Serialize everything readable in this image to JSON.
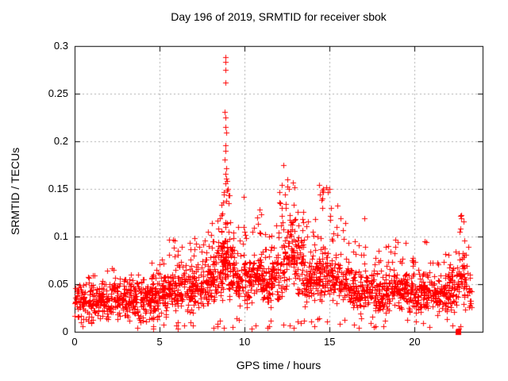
{
  "chart_data": {
    "type": "scatter",
    "title": "Day 196 of 2019, SRMTID for receiver sbok",
    "xlabel": "GPS time / hours",
    "ylabel": "SRMTID / TECUs",
    "xlim": [
      0,
      24
    ],
    "ylim": [
      0,
      0.3
    ],
    "xticks": [
      0,
      5,
      10,
      15,
      20
    ],
    "xtick_labels": [
      "0",
      "5",
      "10",
      "15",
      "20"
    ],
    "yticks": [
      0,
      0.05,
      0.1,
      0.15,
      0.2,
      0.25,
      0.3
    ],
    "ytick_labels": [
      "0",
      "0.05",
      "0.1",
      "0.15",
      "0.2",
      "0.25",
      "0.3"
    ],
    "grid": true,
    "legend": "none",
    "marker": "plus",
    "marker_color": "#ff0000",
    "grid_color": "#b0b0b0",
    "axis_color": "#000000",
    "background": "#ffffff",
    "density_envelope": {
      "description": "Dense scatter of ~2300 red plus markers; per-bin [hourStart, hourEnd, minY, typicalY, maxY, count] estimated from the plot",
      "bins": [
        [
          0.0,
          0.5,
          0.012,
          0.032,
          0.062,
          40
        ],
        [
          0.5,
          1.0,
          0.006,
          0.028,
          0.058,
          42
        ],
        [
          1.0,
          1.5,
          0.005,
          0.03,
          0.072,
          45
        ],
        [
          1.5,
          2.0,
          0.008,
          0.033,
          0.078,
          45
        ],
        [
          2.0,
          2.5,
          0.01,
          0.036,
          0.072,
          45
        ],
        [
          2.5,
          3.0,
          0.01,
          0.034,
          0.065,
          45
        ],
        [
          3.0,
          3.5,
          0.01,
          0.033,
          0.062,
          45
        ],
        [
          3.5,
          4.0,
          0.008,
          0.032,
          0.06,
          45
        ],
        [
          4.0,
          4.5,
          0.006,
          0.03,
          0.058,
          48
        ],
        [
          4.5,
          5.0,
          0.008,
          0.034,
          0.078,
          55
        ],
        [
          5.0,
          5.5,
          0.012,
          0.038,
          0.085,
          48
        ],
        [
          5.5,
          6.0,
          0.018,
          0.045,
          0.1,
          50
        ],
        [
          6.0,
          6.5,
          0.02,
          0.048,
          0.105,
          50
        ],
        [
          6.5,
          7.0,
          0.018,
          0.045,
          0.095,
          50
        ],
        [
          7.0,
          7.5,
          0.018,
          0.046,
          0.1,
          50
        ],
        [
          7.5,
          8.0,
          0.02,
          0.05,
          0.11,
          50
        ],
        [
          8.0,
          8.4,
          0.025,
          0.055,
          0.13,
          45
        ],
        [
          8.4,
          8.75,
          0.03,
          0.065,
          0.16,
          50
        ],
        [
          8.75,
          9.1,
          0.03,
          0.075,
          0.15,
          55
        ],
        [
          9.1,
          9.5,
          0.03,
          0.065,
          0.15,
          50
        ],
        [
          9.5,
          10.0,
          0.022,
          0.05,
          0.11,
          50
        ],
        [
          10.0,
          10.5,
          0.025,
          0.055,
          0.115,
          50
        ],
        [
          10.5,
          11.0,
          0.03,
          0.058,
          0.125,
          52
        ],
        [
          11.0,
          11.5,
          0.025,
          0.05,
          0.11,
          50
        ],
        [
          11.5,
          12.0,
          0.025,
          0.055,
          0.115,
          50
        ],
        [
          12.0,
          12.5,
          0.03,
          0.068,
          0.155,
          55
        ],
        [
          12.5,
          13.0,
          0.035,
          0.08,
          0.165,
          58
        ],
        [
          13.0,
          13.5,
          0.03,
          0.07,
          0.15,
          55
        ],
        [
          13.5,
          14.0,
          0.025,
          0.052,
          0.12,
          48
        ],
        [
          14.0,
          14.5,
          0.025,
          0.055,
          0.13,
          50
        ],
        [
          14.5,
          15.0,
          0.03,
          0.06,
          0.15,
          52
        ],
        [
          15.0,
          15.5,
          0.025,
          0.055,
          0.14,
          50
        ],
        [
          15.5,
          16.0,
          0.022,
          0.048,
          0.12,
          48
        ],
        [
          16.0,
          16.5,
          0.018,
          0.045,
          0.1,
          48
        ],
        [
          16.5,
          17.0,
          0.018,
          0.042,
          0.095,
          48
        ],
        [
          17.0,
          17.5,
          0.016,
          0.042,
          0.105,
          48
        ],
        [
          17.5,
          18.0,
          0.015,
          0.04,
          0.085,
          48
        ],
        [
          18.0,
          18.5,
          0.015,
          0.04,
          0.09,
          48
        ],
        [
          18.5,
          19.0,
          0.018,
          0.044,
          0.1,
          48
        ],
        [
          19.0,
          19.5,
          0.018,
          0.042,
          0.095,
          48
        ],
        [
          19.5,
          20.0,
          0.015,
          0.04,
          0.08,
          46
        ],
        [
          20.0,
          20.5,
          0.015,
          0.038,
          0.085,
          46
        ],
        [
          20.5,
          21.0,
          0.015,
          0.04,
          0.095,
          46
        ],
        [
          21.0,
          21.5,
          0.015,
          0.038,
          0.08,
          46
        ],
        [
          21.5,
          22.0,
          0.016,
          0.04,
          0.085,
          46
        ],
        [
          22.0,
          22.5,
          0.018,
          0.045,
          0.1,
          46
        ],
        [
          22.5,
          23.0,
          0.02,
          0.052,
          0.125,
          48
        ],
        [
          23.0,
          23.35,
          0.02,
          0.045,
          0.095,
          22
        ]
      ]
    },
    "peak_points": [
      [
        8.85,
        0.288
      ],
      [
        8.88,
        0.283
      ],
      [
        8.86,
        0.275
      ],
      [
        8.89,
        0.262
      ],
      [
        8.84,
        0.231
      ],
      [
        8.88,
        0.225
      ],
      [
        8.86,
        0.215
      ],
      [
        8.9,
        0.209
      ],
      [
        8.85,
        0.196
      ],
      [
        8.87,
        0.19
      ],
      [
        8.83,
        0.181
      ],
      [
        8.9,
        0.172
      ],
      [
        8.86,
        0.166
      ],
      [
        8.92,
        0.161
      ],
      [
        8.88,
        0.156
      ],
      [
        9.0,
        0.15
      ],
      [
        8.79,
        0.147
      ],
      [
        9.05,
        0.143
      ],
      [
        8.95,
        0.158
      ],
      [
        9.95,
        0.142
      ],
      [
        10.9,
        0.128
      ],
      [
        12.3,
        0.175
      ],
      [
        12.85,
        0.157
      ],
      [
        12.6,
        0.15
      ],
      [
        12.95,
        0.152
      ],
      [
        14.4,
        0.154
      ],
      [
        14.45,
        0.144
      ],
      [
        14.8,
        0.152
      ],
      [
        14.9,
        0.147
      ],
      [
        15.0,
        0.15
      ],
      [
        15.1,
        0.13
      ],
      [
        17.05,
        0.119
      ],
      [
        20.6,
        0.095
      ],
      [
        22.68,
        0.122
      ],
      [
        22.72,
        0.119
      ],
      [
        22.7,
        0.108
      ],
      [
        22.66,
        0.105
      ]
    ],
    "isolated_square_point": {
      "x": 22.55,
      "y": 0.0,
      "marker": "filled-square"
    }
  }
}
